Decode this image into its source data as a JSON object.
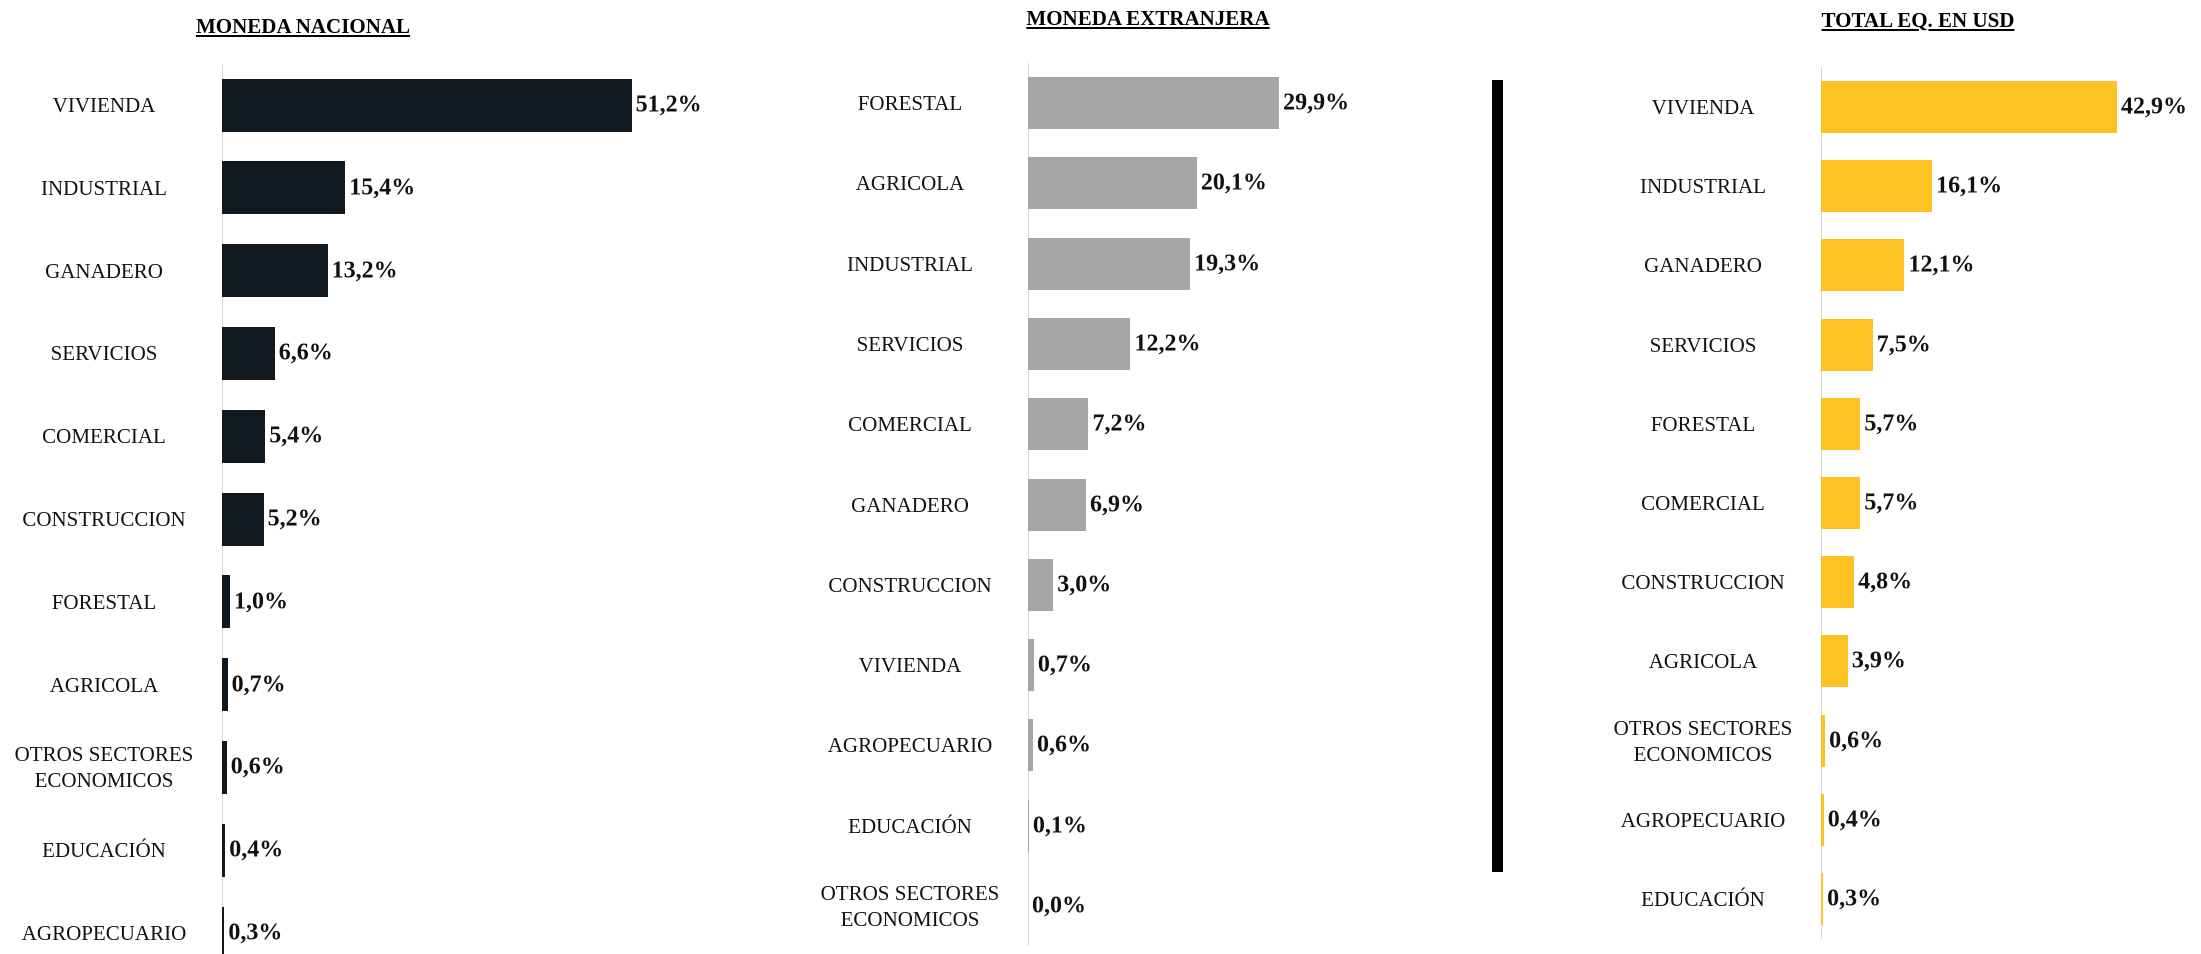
{
  "chart_data": [
    {
      "type": "bar",
      "orientation": "horizontal",
      "title": "MONEDA NACIONAL",
      "color": "#101820",
      "categories": [
        "VIVIENDA",
        "INDUSTRIAL",
        "GANADERO",
        "SERVICIOS",
        "COMERCIAL",
        "CONSTRUCCION",
        "FORESTAL",
        "AGRICOLA",
        "OTROS SECTORES ECONOMICOS",
        "EDUCACIÓN",
        "AGROPECUARIO"
      ],
      "values": [
        51.2,
        15.4,
        13.2,
        6.6,
        5.4,
        5.2,
        1.0,
        0.7,
        0.6,
        0.4,
        0.3
      ],
      "value_labels": [
        "51,2%",
        "15,4%",
        "13,2%",
        "6,6%",
        "5,4%",
        "5,2%",
        "1,0%",
        "0,7%",
        "0,6%",
        "0,4%",
        "0,3%"
      ]
    },
    {
      "type": "bar",
      "orientation": "horizontal",
      "title": "MONEDA EXTRANJERA",
      "color": "#a6a6a6",
      "categories": [
        "FORESTAL",
        "AGRICOLA",
        "INDUSTRIAL",
        "SERVICIOS",
        "COMERCIAL",
        "GANADERO",
        "CONSTRUCCION",
        "VIVIENDA",
        "AGROPECUARIO",
        "EDUCACIÓN",
        "OTROS SECTORES ECONOMICOS"
      ],
      "values": [
        29.9,
        20.1,
        19.3,
        12.2,
        7.2,
        6.9,
        3.0,
        0.7,
        0.6,
        0.1,
        0.0
      ],
      "value_labels": [
        "29,9%",
        "20,1%",
        "19,3%",
        "12,2%",
        "7,2%",
        "6,9%",
        "3,0%",
        "0,7%",
        "0,6%",
        "0,1%",
        "0,0%"
      ]
    },
    {
      "type": "bar",
      "orientation": "horizontal",
      "title": "TOTAL EQ. EN USD",
      "color": "#fdc323",
      "categories": [
        "VIVIENDA",
        "INDUSTRIAL",
        "GANADERO",
        "SERVICIOS",
        "FORESTAL",
        "COMERCIAL",
        "CONSTRUCCION",
        "AGRICOLA",
        "OTROS SECTORES ECONOMICOS",
        "AGROPECUARIO",
        "EDUCACIÓN"
      ],
      "values": [
        42.9,
        16.1,
        12.1,
        7.5,
        5.7,
        5.7,
        4.8,
        3.9,
        0.6,
        0.4,
        0.3
      ],
      "value_labels": [
        "42,9%",
        "16,1%",
        "12,1%",
        "7,5%",
        "5,7%",
        "5,7%",
        "4,8%",
        "3,9%",
        "0,6%",
        "0,4%",
        "0,3%"
      ]
    }
  ]
}
